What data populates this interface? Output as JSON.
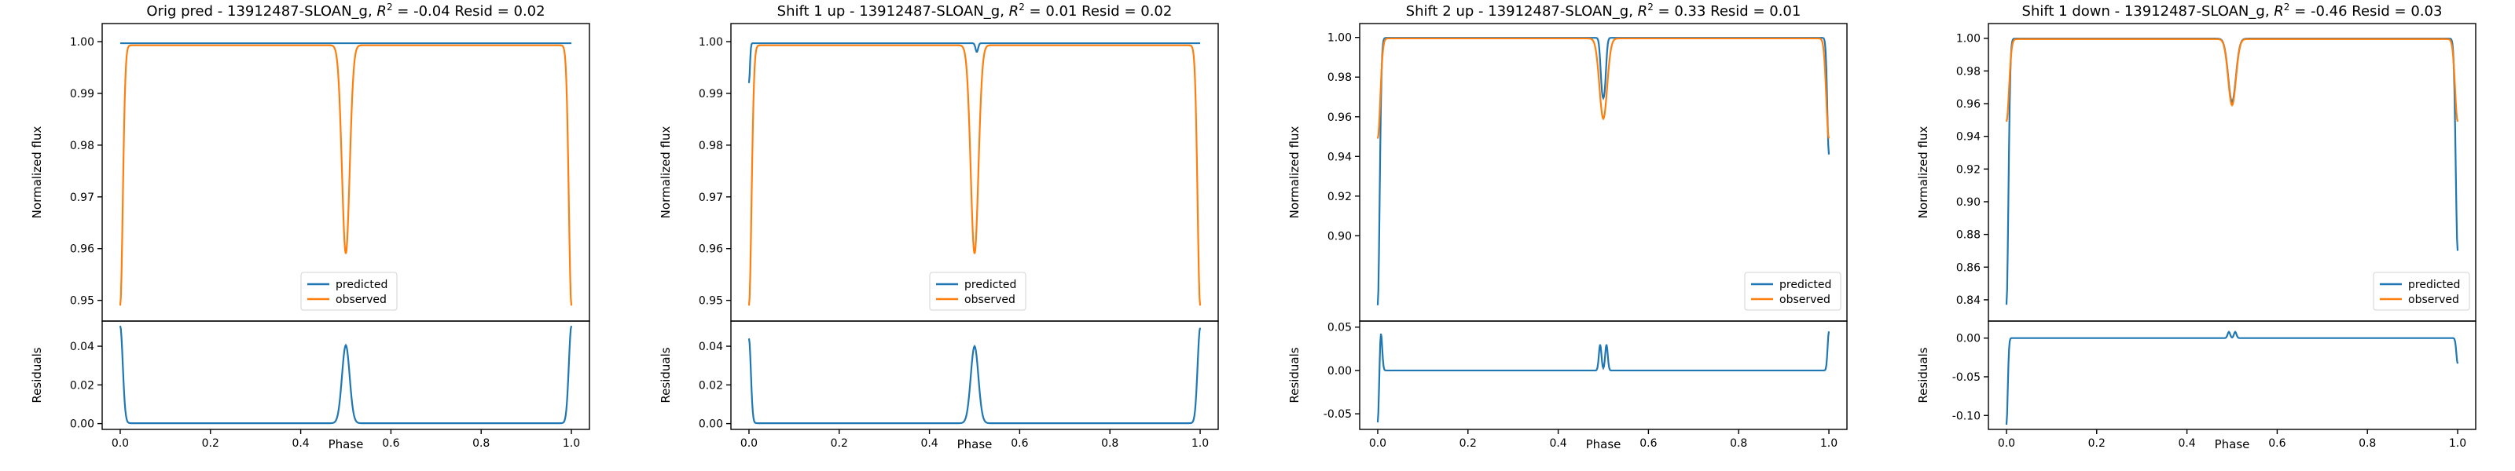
{
  "colors": {
    "predicted": "#1f77b4",
    "observed": "#ff7f0e"
  },
  "chart_data": [
    {
      "type": "line",
      "title": "Orig pred - 13912487-SLOAN_g, $R^2 = $-0.04 Resid = 0.02",
      "title_main": "Orig pred - 13912487-SLOAN_g, ",
      "title_r2": "R",
      "title_sup": "2",
      "title_rest": " = -0.04 Resid = 0.02",
      "xlabel": "Phase",
      "ylabel_top": "Normalized flux",
      "ylabel_bottom": "Residuals",
      "xlim": [
        -0.04,
        1.04
      ],
      "xticks": [
        0.0,
        0.2,
        0.4,
        0.6,
        0.8,
        1.0
      ],
      "xtick_labels": [
        "0.0",
        "0.2",
        "0.4",
        "0.6",
        "0.8",
        "1.0"
      ],
      "ylim_top": [
        0.946,
        1.0035
      ],
      "yticks_top": [
        0.95,
        0.96,
        0.97,
        0.98,
        0.99,
        1.0
      ],
      "ytick_labels_top": [
        "0.95",
        "0.96",
        "0.97",
        "0.98",
        "0.99",
        "1.00"
      ],
      "ylim_bottom": [
        -0.003,
        0.053
      ],
      "yticks_bottom": [
        0.0,
        0.02,
        0.04
      ],
      "ytick_labels_bottom": [
        "0.00",
        "0.02",
        "0.04"
      ],
      "legend": {
        "placement": "lower-center",
        "entries": [
          "predicted",
          "observed"
        ]
      },
      "series": [
        {
          "name": "predicted",
          "baseline": 0.9997,
          "edges": [],
          "dips": []
        },
        {
          "name": "observed",
          "baseline": 0.9993,
          "edges": [
            [
              0.0,
              0.949,
              0.008
            ],
            [
              1.0,
              0.949,
              0.008
            ]
          ],
          "dips": [
            [
              0.5,
              0.959,
              0.012
            ]
          ]
        },
        {
          "name": "residuals",
          "baseline": 0.0002,
          "edges": [
            [
              0.0,
              0.0505,
              0.008
            ],
            [
              1.0,
              0.0505,
              0.008
            ]
          ],
          "dips": [
            [
              0.5,
              0.0405,
              0.012
            ]
          ]
        }
      ]
    },
    {
      "type": "line",
      "title": "Shift 1 up - 13912487-SLOAN_g, $R^2 = $0.01 Resid = 0.02",
      "title_main": "Shift 1 up - 13912487-SLOAN_g, ",
      "title_r2": "R",
      "title_sup": "2",
      "title_rest": " = 0.01 Resid = 0.02",
      "xlabel": "Phase",
      "ylabel_top": "Normalized flux",
      "ylabel_bottom": "Residuals",
      "xlim": [
        -0.04,
        1.04
      ],
      "xticks": [
        0.0,
        0.2,
        0.4,
        0.6,
        0.8,
        1.0
      ],
      "xtick_labels": [
        "0.0",
        "0.2",
        "0.4",
        "0.6",
        "0.8",
        "1.0"
      ],
      "ylim_top": [
        0.946,
        1.0035
      ],
      "yticks_top": [
        0.95,
        0.96,
        0.97,
        0.98,
        0.99,
        1.0
      ],
      "ytick_labels_top": [
        "0.95",
        "0.96",
        "0.97",
        "0.98",
        "0.99",
        "1.00"
      ],
      "ylim_bottom": [
        -0.003,
        0.053
      ],
      "yticks_bottom": [
        0.0,
        0.02,
        0.04
      ],
      "ytick_labels_bottom": [
        "0.00",
        "0.02",
        "0.04"
      ],
      "legend": {
        "placement": "lower-center",
        "entries": [
          "predicted",
          "observed"
        ]
      },
      "series": [
        {
          "name": "predicted",
          "baseline": 0.9997,
          "edges": [
            [
              0.0,
              0.992,
              0.003
            ]
          ],
          "dips": [
            [
              0.505,
              0.998,
              0.004
            ]
          ]
        },
        {
          "name": "observed",
          "baseline": 0.9993,
          "edges": [
            [
              0.0,
              0.949,
              0.008
            ],
            [
              1.0,
              0.949,
              0.008
            ]
          ],
          "dips": [
            [
              0.5,
              0.959,
              0.012
            ]
          ]
        },
        {
          "name": "residuals",
          "baseline": 0.0002,
          "edges": [
            [
              0.0,
              0.044,
              0.006
            ],
            [
              1.0,
              0.0495,
              0.008
            ]
          ],
          "dips": [
            [
              0.5,
              0.04,
              0.012
            ]
          ]
        }
      ]
    },
    {
      "type": "line",
      "title": "Shift 2 up - 13912487-SLOAN_g, $R^2 = $0.33 Resid = 0.01",
      "title_main": "Shift 2 up - 13912487-SLOAN_g, ",
      "title_r2": "R",
      "title_sup": "2",
      "title_rest": " = 0.33 Resid = 0.01",
      "xlabel": "Phase",
      "ylabel_top": "Normalized flux",
      "ylabel_bottom": "Residuals",
      "xlim": [
        -0.04,
        1.04
      ],
      "xticks": [
        0.0,
        0.2,
        0.4,
        0.6,
        0.8,
        1.0
      ],
      "xtick_labels": [
        "0.0",
        "0.2",
        "0.4",
        "0.6",
        "0.8",
        "1.0"
      ],
      "ylim_top": [
        0.857,
        1.007
      ],
      "yticks_top": [
        0.9,
        0.92,
        0.94,
        0.96,
        0.98,
        1.0
      ],
      "ytick_labels_top": [
        "0.90",
        "0.92",
        "0.94",
        "0.96",
        "0.98",
        "1.00"
      ],
      "ylim_bottom": [
        -0.068,
        0.057
      ],
      "yticks_bottom": [
        -0.05,
        0.0,
        0.05
      ],
      "ytick_labels_bottom": [
        "-0.05",
        "0.00",
        "0.05"
      ],
      "legend": {
        "placement": "lower-right",
        "entries": [
          "predicted",
          "observed"
        ]
      },
      "series": [
        {
          "name": "predicted",
          "baseline": 0.9998,
          "edges": [
            [
              0.0,
              0.865,
              0.006
            ],
            [
              1.0,
              0.941,
              0.005
            ]
          ],
          "dips": [
            [
              0.497,
              0.978,
              0.005
            ],
            [
              0.503,
              0.978,
              0.005
            ]
          ]
        },
        {
          "name": "observed",
          "baseline": 0.9995,
          "edges": [
            [
              0.0,
              0.949,
              0.008
            ],
            [
              1.0,
              0.949,
              0.008
            ]
          ],
          "dips": [
            [
              0.5,
              0.959,
              0.012
            ]
          ]
        },
        {
          "name": "residuals",
          "baseline": 0.0,
          "edges": [
            [
              0.0,
              -0.062,
              0.004
            ],
            [
              0.007,
              0.045,
              0.004
            ],
            [
              1.0,
              0.045,
              0.004
            ]
          ],
          "dips": [
            [
              0.493,
              0.03,
              0.004
            ],
            [
              0.507,
              0.03,
              0.004
            ]
          ]
        }
      ]
    },
    {
      "type": "line",
      "title": "Shift 1 down - 13912487-SLOAN_g, $R^2 = $-0.46 Resid = 0.03",
      "title_main": "Shift 1 down - 13912487-SLOAN_g, ",
      "title_r2": "R",
      "title_sup": "2",
      "title_rest": " = -0.46 Resid = 0.03",
      "xlabel": "Phase",
      "ylabel_top": "Normalized flux",
      "ylabel_bottom": "Residuals",
      "xlim": [
        -0.04,
        1.04
      ],
      "xticks": [
        0.0,
        0.2,
        0.4,
        0.6,
        0.8,
        1.0
      ],
      "xtick_labels": [
        "0.0",
        "0.2",
        "0.4",
        "0.6",
        "0.8",
        "1.0"
      ],
      "ylim_top": [
        0.827,
        1.009
      ],
      "yticks_top": [
        0.84,
        0.86,
        0.88,
        0.9,
        0.92,
        0.94,
        0.96,
        0.98,
        1.0
      ],
      "ytick_labels_top": [
        "0.84",
        "0.86",
        "0.88",
        "0.90",
        "0.92",
        "0.94",
        "0.96",
        "0.98",
        "1.00"
      ],
      "ylim_bottom": [
        -0.118,
        0.022
      ],
      "yticks_bottom": [
        -0.1,
        -0.05,
        0.0
      ],
      "ytick_labels_bottom": [
        "-0.10",
        "-0.05",
        "0.00"
      ],
      "legend": {
        "placement": "lower-right",
        "entries": [
          "predicted",
          "observed"
        ]
      },
      "series": [
        {
          "name": "predicted",
          "baseline": 0.9998,
          "edges": [
            [
              0.0,
              0.837,
              0.006
            ],
            [
              1.0,
              0.87,
              0.006
            ]
          ],
          "dips": [
            [
              0.5,
              0.961,
              0.012
            ]
          ]
        },
        {
          "name": "observed",
          "baseline": 0.9995,
          "edges": [
            [
              0.0,
              0.949,
              0.008
            ],
            [
              1.0,
              0.949,
              0.008
            ]
          ],
          "dips": [
            [
              0.5,
              0.959,
              0.012
            ]
          ]
        },
        {
          "name": "residuals",
          "baseline": 0.0,
          "edges": [
            [
              0.0,
              -0.112,
              0.004
            ],
            [
              1.0,
              -0.033,
              0.004
            ]
          ],
          "dips": [
            [
              0.493,
              0.008,
              0.004
            ],
            [
              0.507,
              0.008,
              0.004
            ]
          ]
        }
      ]
    }
  ]
}
